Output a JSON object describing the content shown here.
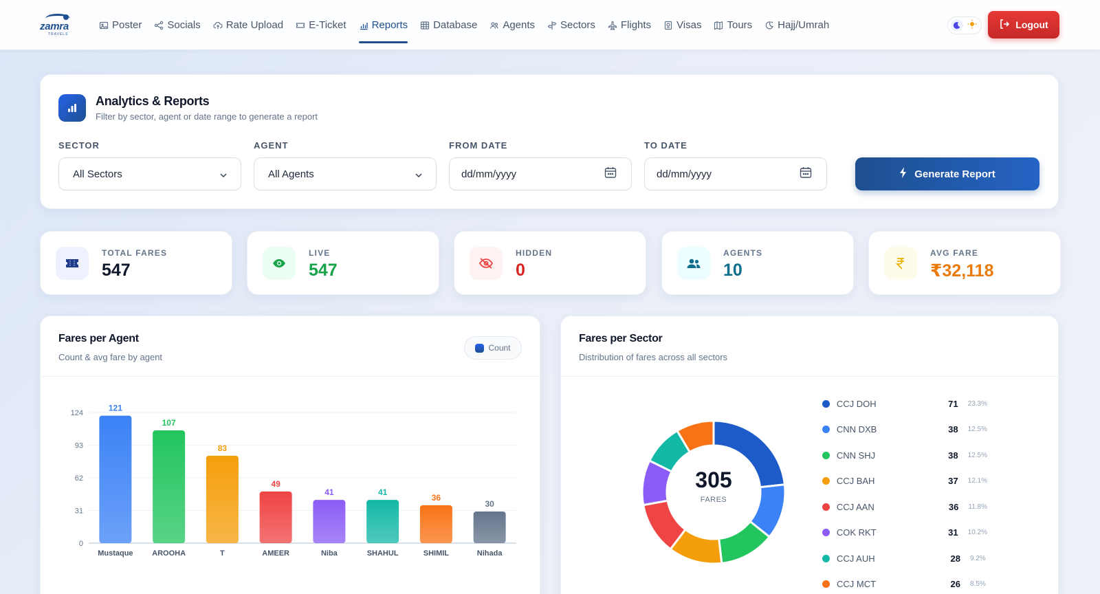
{
  "brand": {
    "name": "zamra",
    "sub": "TRAVELS"
  },
  "nav": {
    "items": [
      {
        "label": "Poster",
        "icon": "image-icon",
        "active": false
      },
      {
        "label": "Socials",
        "icon": "share-icon",
        "active": false
      },
      {
        "label": "Rate Upload",
        "icon": "cloud-upload-icon",
        "active": false
      },
      {
        "label": "E-Ticket",
        "icon": "ticket-icon",
        "active": false
      },
      {
        "label": "Reports",
        "icon": "bar-chart-icon",
        "active": true
      },
      {
        "label": "Database",
        "icon": "table-icon",
        "active": false
      },
      {
        "label": "Agents",
        "icon": "users-icon",
        "active": false
      },
      {
        "label": "Sectors",
        "icon": "signpost-icon",
        "active": false
      },
      {
        "label": "Flights",
        "icon": "plane-icon",
        "active": false
      },
      {
        "label": "Visas",
        "icon": "passport-icon",
        "active": false
      },
      {
        "label": "Tours",
        "icon": "map-icon",
        "active": false
      },
      {
        "label": "Hajj/Umrah",
        "icon": "moon-star-icon",
        "active": false
      }
    ],
    "logout_label": "Logout"
  },
  "filters": {
    "title": "Analytics & Reports",
    "subtitle": "Filter by sector, agent or date range to generate a report",
    "sector_label": "SECTOR",
    "sector_value": "All Sectors",
    "agent_label": "AGENT",
    "agent_value": "All Agents",
    "from_label": "FROM DATE",
    "from_placeholder": "dd/mm/yyyy",
    "to_label": "TO DATE",
    "to_placeholder": "dd/mm/yyyy",
    "generate_label": "Generate Report"
  },
  "stats": [
    {
      "label": "TOTAL FARES",
      "value": "547",
      "color": "#0f172a",
      "icon": "ticket-icon",
      "bg": "#eef2ff"
    },
    {
      "label": "LIVE",
      "value": "547",
      "color": "#16a34a",
      "icon": "eye-icon",
      "bg": "#ecfdf3"
    },
    {
      "label": "HIDDEN",
      "value": "0",
      "color": "#dc2626",
      "icon": "eye-off-icon",
      "bg": "#fef2f2"
    },
    {
      "label": "AGENTS",
      "value": "10",
      "color": "#0e6e8c",
      "icon": "users-icon",
      "bg": "#ecfeff"
    },
    {
      "label": "AVG FARE",
      "value": "₹32,118",
      "color": "#ea7a0c",
      "icon": "rupee-icon",
      "bg": "#fffbeb"
    }
  ],
  "agent_chart": {
    "title": "Fares per Agent",
    "subtitle": "Count & avg fare by agent",
    "toggle_label": "Count"
  },
  "sector_chart": {
    "title": "Fares per Sector",
    "subtitle": "Distribution of fares across all sectors",
    "center_value": "305",
    "center_label": "FARES"
  },
  "chart_data": [
    {
      "type": "bar",
      "title": "Fares per Agent",
      "categories": [
        "Mustaque",
        "AROOHA",
        "T",
        "AMEER",
        "Niba",
        "SHAHUL",
        "SHIMIL",
        "Nihada"
      ],
      "values": [
        121,
        107,
        83,
        49,
        41,
        41,
        36,
        30
      ],
      "colors": [
        "#3b82f6",
        "#22c55e",
        "#f59e0b",
        "#ef4444",
        "#8b5cf6",
        "#14b8a6",
        "#f97316",
        "#64748b"
      ],
      "yticks": [
        0,
        31,
        62,
        93,
        124
      ],
      "ylim": [
        0,
        124
      ],
      "grid": true
    },
    {
      "type": "pie",
      "title": "Fares per Sector",
      "labels": [
        "CCJ DOH",
        "CNN DXB",
        "CNN SHJ",
        "CCJ BAH",
        "CCJ AAN",
        "COK RKT",
        "CCJ AUH",
        "CCJ MCT"
      ],
      "values": [
        71,
        38,
        38,
        37,
        36,
        31,
        28,
        26
      ],
      "percents": [
        "23.3%",
        "12.5%",
        "12.5%",
        "12.1%",
        "11.8%",
        "10.2%",
        "9.2%",
        "8.5%"
      ],
      "colors": [
        "#1d5bc9",
        "#3b82f6",
        "#22c55e",
        "#f59e0b",
        "#ef4444",
        "#8b5cf6",
        "#14b8a6",
        "#f97316"
      ],
      "total": 305
    }
  ]
}
